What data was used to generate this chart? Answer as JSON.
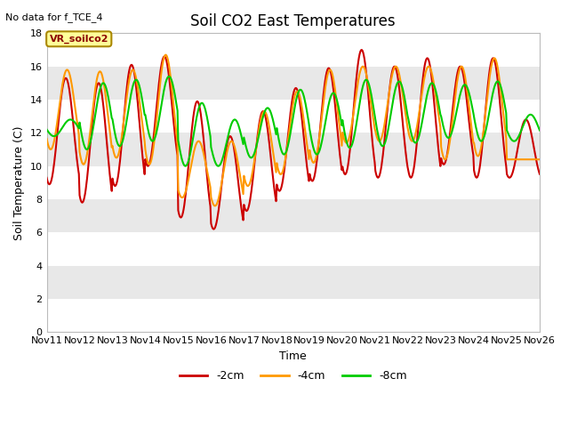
{
  "title": "Soil CO2 East Temperatures",
  "no_data_text": "No data for f_TCE_4",
  "xlabel": "Time",
  "ylabel": "Soil Temperature (C)",
  "ylim": [
    0,
    18
  ],
  "yticks": [
    0,
    2,
    4,
    6,
    8,
    10,
    12,
    14,
    16,
    18
  ],
  "xlim_days": [
    0,
    15
  ],
  "x_tick_labels": [
    "Nov 11",
    "Nov 12",
    "Nov 13",
    "Nov 14",
    "Nov 15",
    "Nov 16",
    "Nov 17",
    "Nov 18",
    "Nov 19",
    "Nov 20",
    "Nov 21",
    "Nov 22",
    "Nov 23",
    "Nov 24",
    "Nov 25",
    "Nov 26"
  ],
  "legend_label_box": "VR_soilco2",
  "legend_labels": [
    "-2cm",
    "-4cm",
    "-8cm"
  ],
  "line_colors": [
    "#cc0000",
    "#ff9900",
    "#00cc00"
  ],
  "line_width": 1.5,
  "bg_color": "#ffffff",
  "band_colors": [
    "#ffffff",
    "#e8e8e8",
    "#ffffff",
    "#e8e8e8",
    "#ffffff",
    "#e8e8e8",
    "#ffffff",
    "#e8e8e8",
    "#ffffff"
  ],
  "title_fontsize": 12,
  "label_fontsize": 9,
  "tick_fontsize": 8,
  "day_peaks_2cm": [
    15.3,
    15.0,
    16.1,
    16.6,
    13.9,
    11.8,
    13.3,
    14.7,
    15.9,
    17.0,
    16.0,
    16.5,
    16.0,
    16.5,
    12.8
  ],
  "day_troughs_2cm": [
    8.9,
    7.8,
    8.8,
    10.0,
    6.9,
    6.2,
    7.3,
    8.5,
    9.1,
    9.5,
    9.3,
    9.3,
    10.1,
    9.3,
    9.3
  ],
  "day_peaks_4cm": [
    15.8,
    15.7,
    15.8,
    16.7,
    11.5,
    11.5,
    13.3,
    14.5,
    15.8,
    16.0,
    16.0,
    16.0,
    16.0,
    16.5,
    10.4
  ],
  "day_troughs_4cm": [
    11.0,
    10.1,
    10.5,
    10.1,
    8.1,
    7.6,
    8.8,
    9.5,
    10.2,
    11.4,
    11.5,
    11.5,
    10.4,
    10.6,
    10.4
  ],
  "day_peaks_8cm": [
    12.8,
    15.0,
    15.2,
    15.4,
    13.8,
    12.8,
    13.5,
    14.6,
    14.4,
    15.2,
    15.1,
    15.0,
    14.9,
    15.1,
    13.1
  ],
  "day_troughs_8cm": [
    11.8,
    11.0,
    11.2,
    11.5,
    10.0,
    10.0,
    10.5,
    10.7,
    10.7,
    11.1,
    11.2,
    11.4,
    11.7,
    11.5,
    11.5
  ],
  "phase_peak_2cm": 0.58,
  "phase_peak_4cm": 0.62,
  "phase_peak_8cm": 0.72
}
